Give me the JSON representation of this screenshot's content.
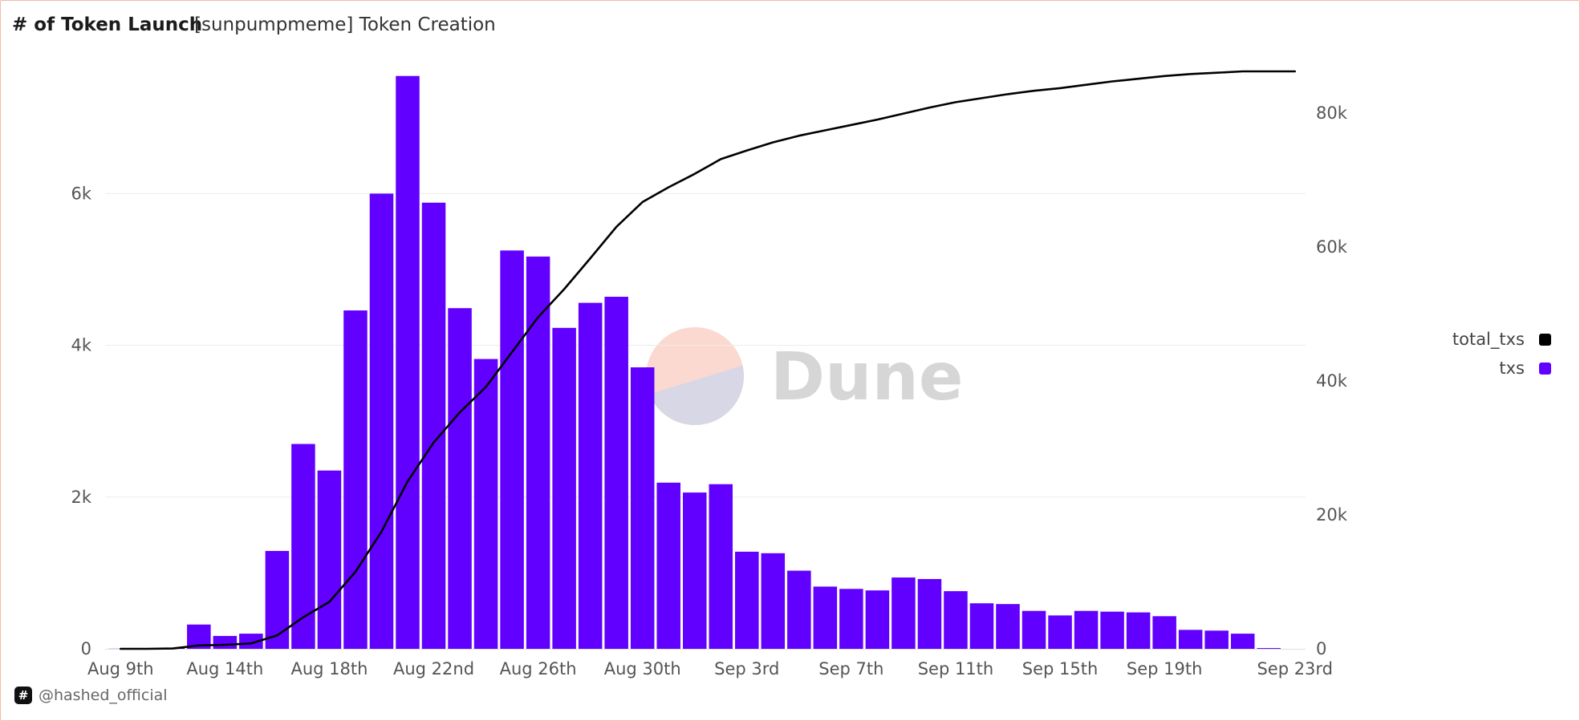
{
  "header": {
    "title": "# of Token Launch",
    "subtitle": "[sunpumpmeme] Token Creation"
  },
  "watermark": {
    "text": "Dune"
  },
  "credit": {
    "icon": "hash-icon",
    "icon_glyph": "#",
    "handle": "@hashed_official"
  },
  "colors": {
    "bar": "#6200ff",
    "line": "#000000",
    "grid": "#ececec",
    "watermark_top": "#fbd9d0",
    "watermark_bottom": "#d7d7e6"
  },
  "chart_data": {
    "type": "bar",
    "categories": [
      "Aug 9th",
      "Aug 10th",
      "Aug 11th",
      "Aug 12th",
      "Aug 13th",
      "Aug 14th",
      "Aug 15th",
      "Aug 16th",
      "Aug 17th",
      "Aug 18th",
      "Aug 19th",
      "Aug 20th",
      "Aug 21st",
      "Aug 22nd",
      "Aug 23rd",
      "Aug 24th",
      "Aug 25th",
      "Aug 26th",
      "Aug 27th",
      "Aug 28th",
      "Aug 29th",
      "Aug 30th",
      "Aug 31st",
      "Sep 1st",
      "Sep 2nd",
      "Sep 3rd",
      "Sep 4th",
      "Sep 5th",
      "Sep 6th",
      "Sep 7th",
      "Sep 8th",
      "Sep 9th",
      "Sep 10th",
      "Sep 11th",
      "Sep 12th",
      "Sep 13th",
      "Sep 14th",
      "Sep 15th",
      "Sep 16th",
      "Sep 17th",
      "Sep 18th",
      "Sep 19th",
      "Sep 20th",
      "Sep 21st",
      "Sep 22nd",
      "Sep 23rd"
    ],
    "x_tick_labels": [
      "Aug 9th",
      "Aug 14th",
      "Aug 18th",
      "Aug 22nd",
      "Aug 26th",
      "Aug 30th",
      "Sep 3rd",
      "Sep 7th",
      "Sep 11th",
      "Sep 15th",
      "Sep 19th",
      "Sep 23rd"
    ],
    "x_tick_indices": [
      0,
      4,
      8,
      12,
      16,
      20,
      24,
      28,
      32,
      36,
      40,
      45
    ],
    "series": [
      {
        "name": "txs",
        "type": "bar",
        "axis": "left",
        "values": [
          2,
          6,
          15,
          320,
          170,
          200,
          1290,
          2700,
          2350,
          4460,
          6000,
          7550,
          5880,
          4490,
          3820,
          5250,
          5170,
          4230,
          4560,
          4640,
          3710,
          2190,
          2060,
          2170,
          1280,
          1260,
          1030,
          820,
          790,
          770,
          940,
          920,
          760,
          600,
          590,
          500,
          440,
          500,
          490,
          480,
          430,
          250,
          240,
          200,
          10,
          0
        ]
      },
      {
        "name": "total_txs",
        "type": "line",
        "axis": "right",
        "values": [
          0,
          0,
          50,
          500,
          600,
          800,
          2000,
          4700,
          7000,
          11500,
          17500,
          25000,
          30800,
          35300,
          39100,
          44300,
          49500,
          53700,
          58300,
          63000,
          66700,
          68900,
          70900,
          73100,
          74400,
          75600,
          76600,
          77400,
          78200,
          79000,
          79900,
          80800,
          81600,
          82200,
          82800,
          83300,
          83700,
          84200,
          84700,
          85100,
          85500,
          85800,
          86000,
          86200,
          86200,
          86200
        ]
      }
    ],
    "y_left": {
      "ticks": [
        0,
        2000,
        4000,
        6000
      ],
      "tick_labels": [
        "0",
        "2k",
        "4k",
        "6k"
      ],
      "range": [
        0,
        7600
      ]
    },
    "y_right": {
      "ticks": [
        0,
        20000,
        40000,
        60000,
        80000
      ],
      "tick_labels": [
        "0",
        "20k",
        "40k",
        "60k",
        "80k"
      ],
      "range": [
        0,
        86200
      ]
    },
    "grid": true,
    "legend": {
      "placement": "right",
      "entries": [
        {
          "name": "total_txs",
          "color": "#000000"
        },
        {
          "name": "txs",
          "color": "#6200ff"
        }
      ]
    }
  }
}
